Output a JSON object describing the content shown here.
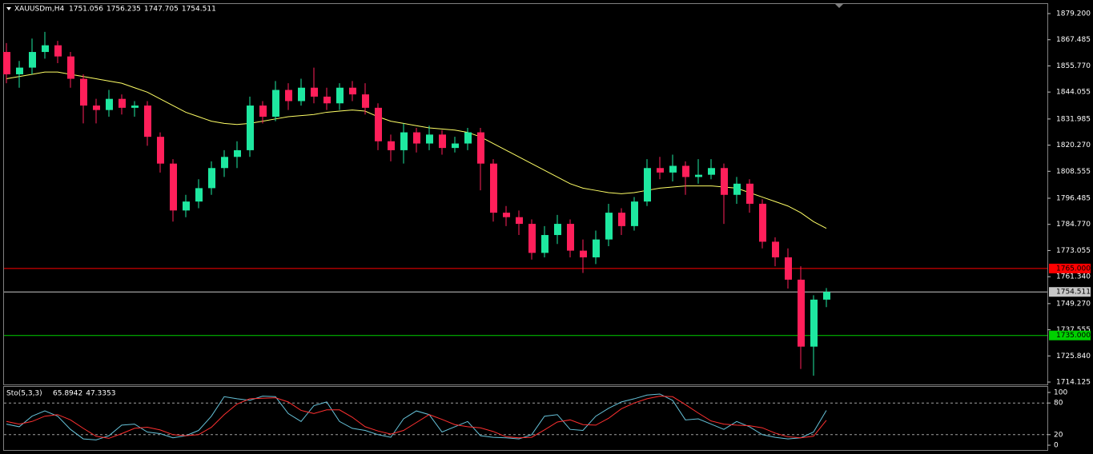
{
  "chart_data": [
    {
      "type": "candlestick",
      "title": "XAUUSDm,H4",
      "header_values": [
        1751.056,
        1756.235,
        1747.705,
        1754.511
      ],
      "up_color": "#1ee8a0",
      "down_color": "#ff1f5a",
      "open": [
        1862,
        1852,
        1855,
        1862,
        1865,
        1860,
        1850,
        1838,
        1836,
        1841,
        1837,
        1838,
        1824,
        1812,
        1791,
        1795,
        1801,
        1810,
        1815,
        1818,
        1838,
        1833,
        1845,
        1840,
        1846,
        1842,
        1839,
        1846,
        1843,
        1837,
        1822,
        1818,
        1826,
        1821,
        1825,
        1819,
        1821,
        1826,
        1812,
        1790,
        1788,
        1785,
        1772,
        1780,
        1785,
        1773,
        1770,
        1778,
        1790,
        1784,
        1795,
        1810,
        1808,
        1811,
        1806,
        1807,
        1810,
        1798,
        1803,
        1794,
        1777,
        1770,
        1760,
        1730,
        1751.056
      ],
      "high": [
        1866,
        1858,
        1868,
        1871,
        1867,
        1862,
        1852,
        1841,
        1845,
        1843,
        1840,
        1840,
        1826,
        1814,
        1798,
        1805,
        1813,
        1818,
        1822,
        1842,
        1840,
        1849,
        1848,
        1850,
        1855,
        1846,
        1848,
        1849,
        1848,
        1839,
        1825,
        1830,
        1828,
        1829,
        1827,
        1824,
        1828,
        1828,
        1814,
        1793,
        1791,
        1787,
        1784,
        1789,
        1787,
        1778,
        1782,
        1794,
        1792,
        1797,
        1814,
        1815,
        1816,
        1813,
        1814,
        1814,
        1812,
        1806,
        1805,
        1796,
        1779,
        1774,
        1766,
        1753,
        1756.235
      ],
      "low": [
        1848,
        1846,
        1852,
        1859,
        1857,
        1846,
        1830,
        1830,
        1833,
        1834,
        1833,
        1820,
        1808,
        1786,
        1788,
        1792,
        1798,
        1806,
        1810,
        1815,
        1830,
        1831,
        1836,
        1838,
        1839,
        1836,
        1836,
        1840,
        1834,
        1818,
        1813,
        1812,
        1817,
        1818,
        1816,
        1817,
        1818,
        1800,
        1786,
        1784,
        1780,
        1769,
        1770,
        1776,
        1770,
        1763,
        1767,
        1775,
        1780,
        1782,
        1793,
        1805,
        1804,
        1798,
        1803,
        1805,
        1785,
        1794,
        1790,
        1774,
        1766,
        1756,
        1720,
        1717,
        1747.705
      ],
      "close": [
        1852,
        1855,
        1862,
        1865,
        1860,
        1850,
        1838,
        1836,
        1841,
        1837,
        1838,
        1824,
        1812,
        1791,
        1795,
        1801,
        1810,
        1815,
        1818,
        1838,
        1833,
        1845,
        1840,
        1846,
        1842,
        1839,
        1846,
        1843,
        1837,
        1822,
        1818,
        1826,
        1821,
        1825,
        1819,
        1821,
        1826,
        1812,
        1790,
        1788,
        1785,
        1772,
        1780,
        1785,
        1773,
        1770,
        1778,
        1790,
        1784,
        1795,
        1810,
        1808,
        1811,
        1806,
        1807,
        1810,
        1798,
        1803,
        1794,
        1777,
        1770,
        1760,
        1730,
        1751.056,
        1754.511
      ],
      "ma": {
        "color": "#ffff66",
        "values": [
          1850,
          1851,
          1852,
          1853,
          1853,
          1852,
          1851,
          1850,
          1849,
          1848,
          1846,
          1844,
          1841,
          1838,
          1835,
          1833,
          1831,
          1830,
          1829.5,
          1830,
          1831,
          1832,
          1833,
          1833.5,
          1834,
          1835,
          1835.5,
          1836,
          1835.5,
          1833,
          1831,
          1830,
          1829,
          1828,
          1827.5,
          1827,
          1826,
          1824,
          1821,
          1818,
          1815,
          1812,
          1809,
          1806,
          1803,
          1801,
          1800,
          1799,
          1798.5,
          1799,
          1800,
          1801,
          1801.5,
          1802,
          1802,
          1802,
          1801.5,
          1801,
          1799,
          1797,
          1795,
          1793,
          1790,
          1786,
          1783
        ]
      },
      "levels": [
        {
          "value": 1765,
          "label": "1765.000",
          "color": "#ff0000",
          "text_color": "#000000"
        },
        {
          "value": 1754.511,
          "label": "1754.511",
          "color": "#c8c8c8",
          "text_color": "#000000"
        },
        {
          "value": 1735,
          "label": "1735.000",
          "color": "#00d000",
          "text_color": "#000000"
        }
      ],
      "ylim": [
        1713.05,
        1883.5
      ],
      "yticks": [
        {
          "value": 1879.2,
          "label": "1879.200"
        },
        {
          "value": 1867.485,
          "label": "1867.485"
        },
        {
          "value": 1855.77,
          "label": "1855.770"
        },
        {
          "value": 1844.055,
          "label": "1844.055"
        },
        {
          "value": 1831.985,
          "label": "1831.985"
        },
        {
          "value": 1820.27,
          "label": "1820.270"
        },
        {
          "value": 1808.555,
          "label": "1808.555"
        },
        {
          "value": 1796.485,
          "label": "1796.485"
        },
        {
          "value": 1784.77,
          "label": "1784.770"
        },
        {
          "value": 1773.055,
          "label": "1773.055"
        },
        {
          "value": 1761.34,
          "label": "1761.340"
        },
        {
          "value": 1749.27,
          "label": "1749.270"
        },
        {
          "value": 1737.555,
          "label": "1737.555"
        },
        {
          "value": 1725.84,
          "label": "1725.840"
        },
        {
          "value": 1714.125,
          "label": "1714.125"
        }
      ]
    },
    {
      "type": "line",
      "title": "Sto(5,3,3)",
      "readout": [
        65.8942,
        47.3353
      ],
      "series": [
        {
          "color": "#66c2d9",
          "values": [
            40,
            35,
            55,
            65,
            55,
            30,
            12,
            10,
            18,
            38,
            40,
            25,
            22,
            14,
            18,
            28,
            55,
            92,
            88,
            85,
            93,
            92,
            60,
            45,
            75,
            82,
            45,
            32,
            28,
            20,
            15,
            50,
            65,
            58,
            25,
            35,
            45,
            18,
            15,
            14,
            12,
            20,
            55,
            58,
            30,
            28,
            55,
            70,
            82,
            88,
            95,
            97,
            85,
            48,
            50,
            40,
            30,
            45,
            35,
            20,
            15,
            12,
            14,
            25,
            65.8942
          ]
        },
        {
          "color": "#ff3030",
          "values": [
            45,
            40,
            45,
            55,
            58,
            48,
            32,
            17,
            13,
            22,
            32,
            34,
            29,
            20,
            18,
            20,
            34,
            58,
            78,
            88,
            89,
            90,
            82,
            66,
            60,
            67,
            67,
            53,
            35,
            27,
            21,
            28,
            43,
            58,
            49,
            39,
            35,
            33,
            26,
            16,
            14,
            15,
            29,
            44,
            48,
            39,
            38,
            51,
            69,
            80,
            88,
            93,
            92,
            77,
            61,
            46,
            40,
            38,
            37,
            33,
            23,
            16,
            14,
            17,
            47.3353
          ]
        }
      ],
      "ylim": [
        0,
        100
      ],
      "yticks": [
        100,
        80,
        20,
        0
      ]
    }
  ]
}
